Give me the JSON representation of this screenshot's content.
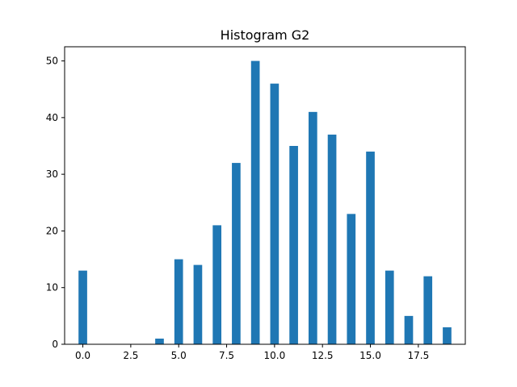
{
  "chart_data": {
    "type": "bar",
    "title": "Histogram G2",
    "xlabel": "",
    "ylabel": "",
    "bars": [
      {
        "x": 0,
        "value": 13
      },
      {
        "x": 4,
        "value": 1
      },
      {
        "x": 5,
        "value": 15
      },
      {
        "x": 6,
        "value": 14
      },
      {
        "x": 7,
        "value": 21
      },
      {
        "x": 8,
        "value": 32
      },
      {
        "x": 9,
        "value": 50
      },
      {
        "x": 10,
        "value": 46
      },
      {
        "x": 11,
        "value": 35
      },
      {
        "x": 12,
        "value": 41
      },
      {
        "x": 13,
        "value": 37
      },
      {
        "x": 14,
        "value": 23
      },
      {
        "x": 15,
        "value": 34
      },
      {
        "x": 16,
        "value": 13
      },
      {
        "x": 17,
        "value": 5
      },
      {
        "x": 18,
        "value": 12
      },
      {
        "x": 19,
        "value": 3
      }
    ],
    "bar_width": 0.45,
    "xlim": [
      -0.95,
      19.95
    ],
    "ylim": [
      0,
      52.5
    ],
    "x_ticks": [
      0,
      2.5,
      5,
      7.5,
      10,
      12.5,
      15,
      17.5
    ],
    "x_tick_labels": [
      "0.0",
      "2.5",
      "5.0",
      "7.5",
      "10.0",
      "12.5",
      "15.0",
      "17.5"
    ],
    "y_ticks": [
      0,
      10,
      20,
      30,
      40,
      50
    ],
    "y_tick_labels": [
      "0",
      "10",
      "20",
      "30",
      "40",
      "50"
    ],
    "bar_color": "#1f77b4",
    "grid": false,
    "legend": false
  }
}
